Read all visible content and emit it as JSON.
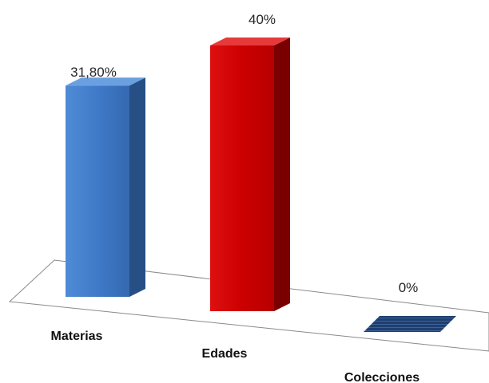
{
  "chart_data": {
    "type": "bar",
    "style": "3d-column",
    "categories": [
      "Materias",
      "Edades",
      "Colecciones"
    ],
    "values": [
      31.8,
      40,
      0
    ],
    "data_labels": [
      "31,80%",
      "40%",
      "0%"
    ],
    "colors": [
      "#3F7AC8",
      "#CC0000",
      "#1F3F6E"
    ],
    "title": "",
    "xlabel": "",
    "ylabel": "",
    "ylim": [
      0,
      40
    ],
    "grid": false,
    "legend": "none"
  }
}
